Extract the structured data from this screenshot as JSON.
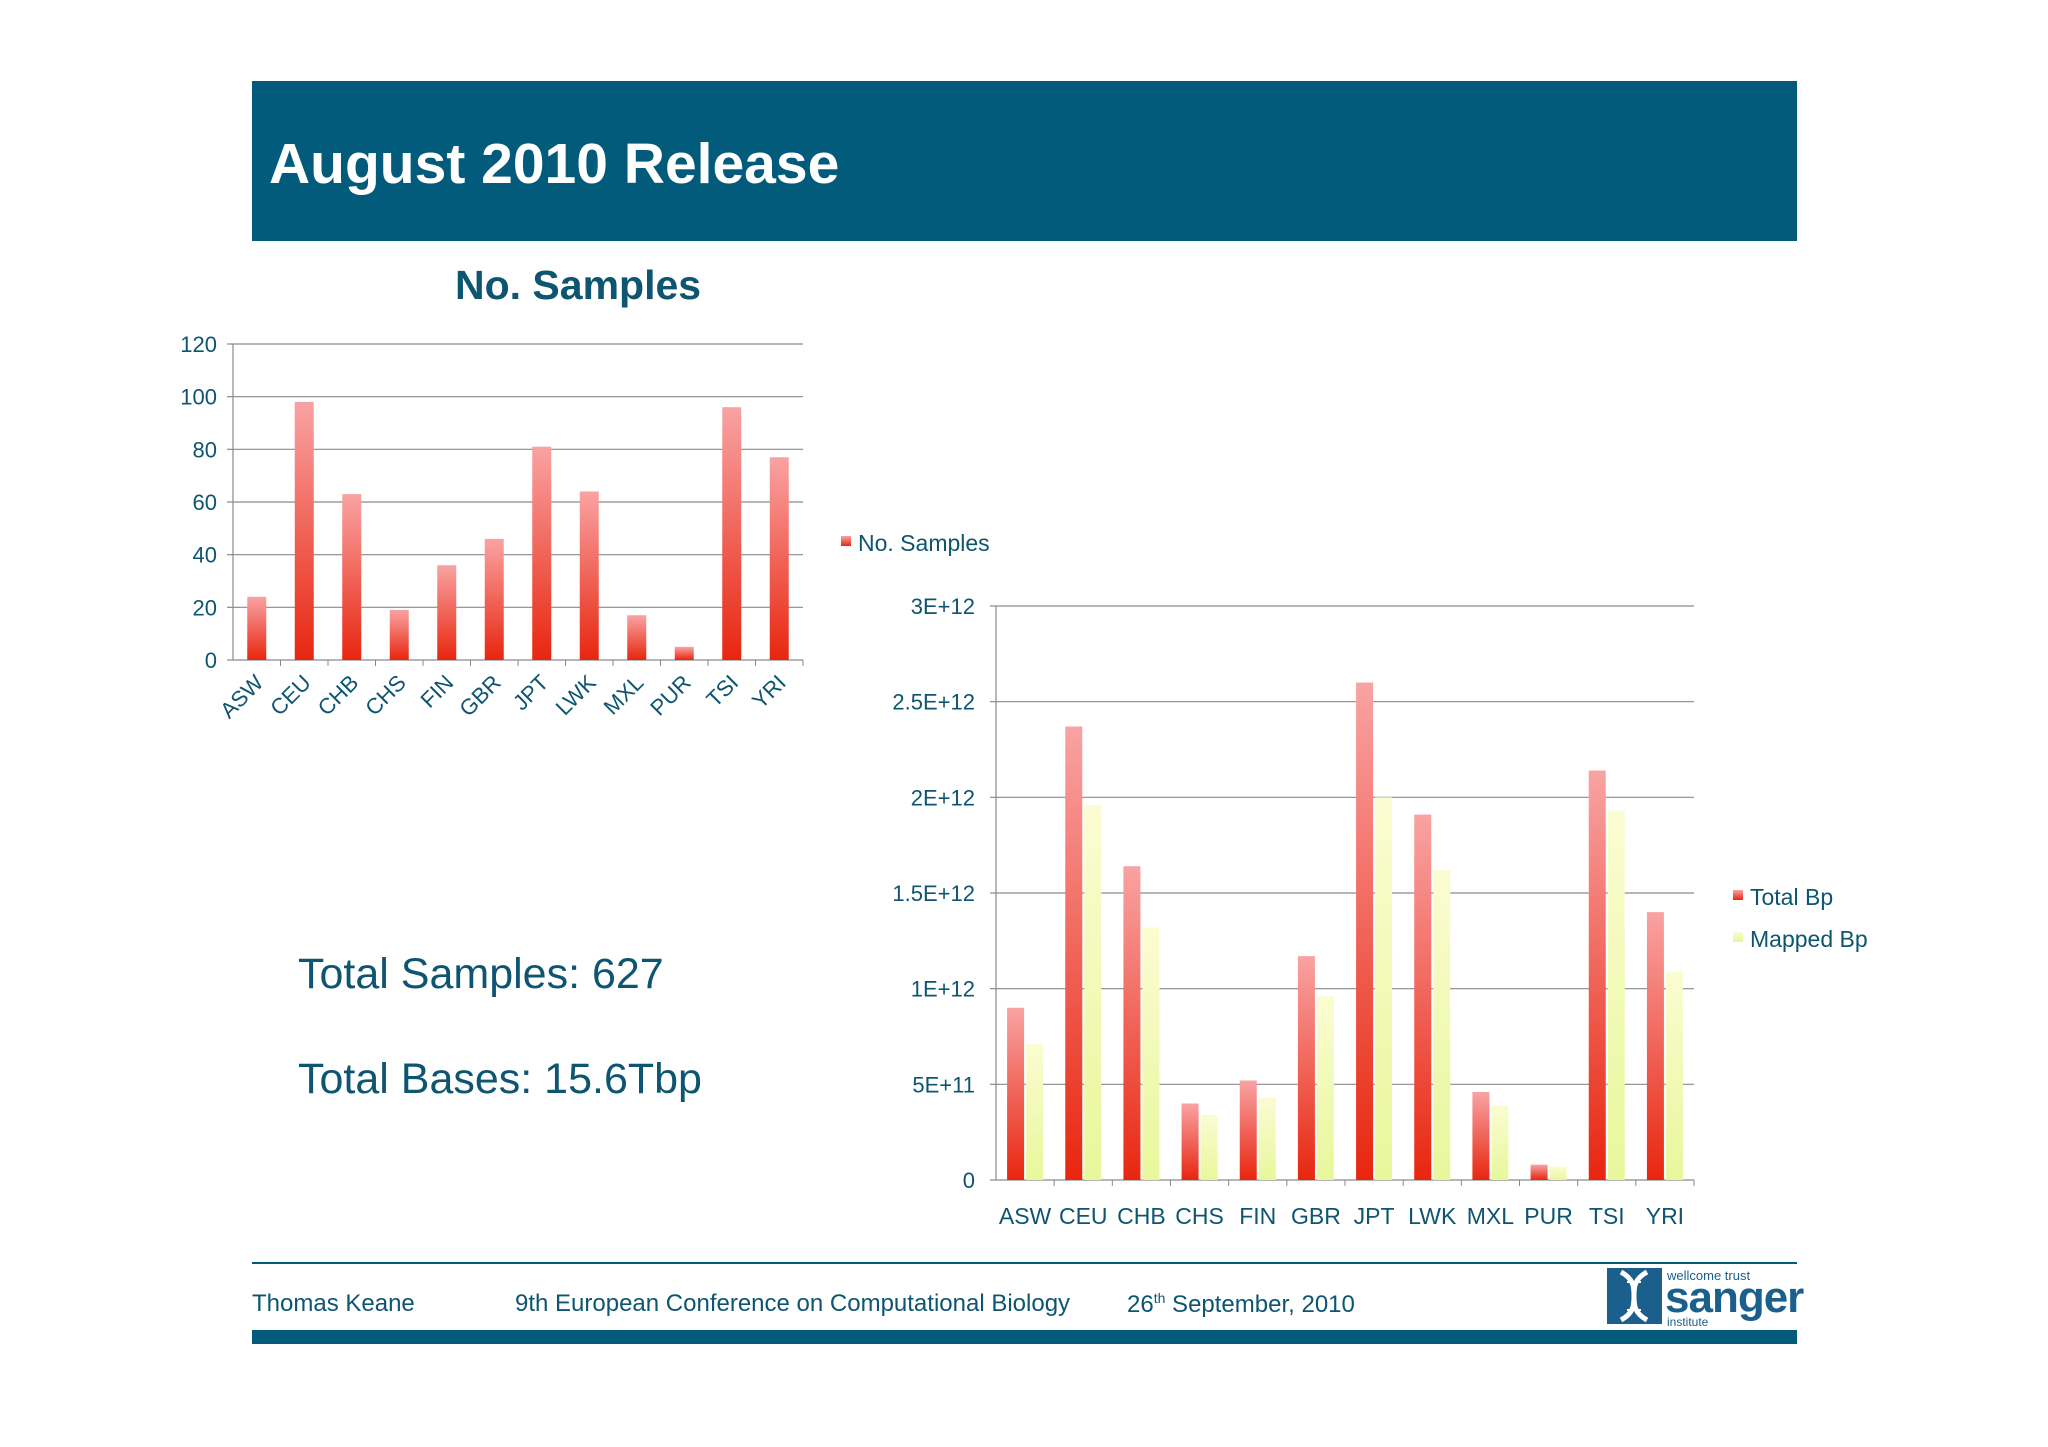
{
  "slide": {
    "title": "August 2010 Release",
    "summary": {
      "total_samples": "Total Samples: 627",
      "total_bases": "Total Bases: 15.6Tbp"
    },
    "footer": {
      "author": "Thomas Keane",
      "conference": "9th European Conference on Computational Biology",
      "date_day": "26",
      "date_sup": "th",
      "date_rest": " September, 2010"
    },
    "logo": {
      "top": "wellcome trust",
      "main": "sanger",
      "sub": "institute"
    }
  },
  "colors": {
    "header": "#025b7b",
    "text": "#0d5570",
    "bar_red_top": "#f9a3a3",
    "bar_red_bottom": "#e8260f",
    "bar_yellow_top": "#fbfcd2",
    "bar_yellow_bottom": "#e8f79b"
  },
  "chart_data": [
    {
      "type": "bar",
      "title": "No. Samples",
      "categories": [
        "ASW",
        "CEU",
        "CHB",
        "CHS",
        "FIN",
        "GBR",
        "JPT",
        "LWK",
        "MXL",
        "PUR",
        "TSI",
        "YRI"
      ],
      "series": [
        {
          "name": "No. Samples",
          "values": [
            24,
            98,
            63,
            19,
            36,
            46,
            81,
            64,
            17,
            5,
            96,
            77
          ]
        }
      ],
      "ylim": [
        0,
        120
      ],
      "yticks": [
        "0",
        "20",
        "40",
        "60",
        "80",
        "100",
        "120"
      ],
      "legend_position": "right",
      "grid": true
    },
    {
      "type": "bar",
      "title": "",
      "categories": [
        "ASW",
        "CEU",
        "CHB",
        "CHS",
        "FIN",
        "GBR",
        "JPT",
        "LWK",
        "MXL",
        "PUR",
        "TSI",
        "YRI"
      ],
      "series": [
        {
          "name": "Total Bp",
          "values": [
            900000000000.0,
            2370000000000.0,
            1640000000000.0,
            400000000000.0,
            520000000000.0,
            1170000000000.0,
            2600000000000.0,
            1910000000000.0,
            460000000000.0,
            80000000000.0,
            2140000000000.0,
            1400000000000.0
          ]
        },
        {
          "name": "Mapped Bp",
          "values": [
            710000000000.0,
            1960000000000.0,
            1320000000000.0,
            340000000000.0,
            430000000000.0,
            960000000000.0,
            2000000000000.0,
            1620000000000.0,
            390000000000.0,
            70000000000.0,
            1930000000000.0,
            1090000000000.0
          ]
        }
      ],
      "ylim": [
        0,
        3000000000000.0
      ],
      "yticks": [
        "0",
        "5E+11",
        "1E+12",
        "1.5E+12",
        "2E+12",
        "2.5E+12",
        "3E+12"
      ],
      "legend_position": "right",
      "grid": true
    }
  ]
}
